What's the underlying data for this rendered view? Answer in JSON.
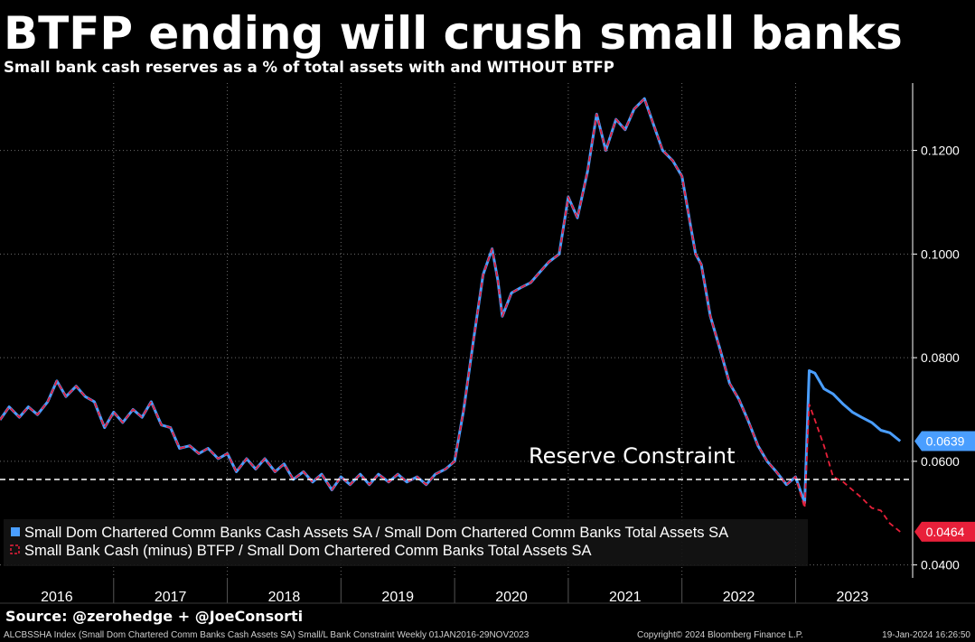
{
  "header": {
    "title": "BTFP ending will crush small banks",
    "subtitle": "Small bank cash reserves as a % of total assets with and WITHOUT BTFP"
  },
  "footer": {
    "source": "Source: @zerohedge + @JoeConsorti",
    "index_info": "ALCBSSHA Index (Small Dom Chartered Comm Banks Cash Assets SA) Small/L Bank Constraint  Weekly 01JAN2016-29NOV2023",
    "copyright": "Copyright© 2024 Bloomberg Finance L.P.",
    "timestamp": "19-Jan-2024 16:26:50"
  },
  "colors": {
    "background": "#000000",
    "series_cash": "#4a9eff",
    "series_minus_btfp": "#e8203a",
    "grid": "#6b6b6b",
    "text": "#ffffff"
  },
  "chart_data": {
    "type": "line",
    "title": "BTFP ending will crush small banks",
    "subtitle": "Small bank cash reserves as a % of total assets with and WITHOUT BTFP",
    "x_tick_labels": [
      "2016",
      "2017",
      "2018",
      "2019",
      "2020",
      "2021",
      "2022",
      "2023"
    ],
    "y_tick_labels": [
      "0.0400",
      "0.0600",
      "0.0800",
      "0.1000",
      "0.1200"
    ],
    "y_ticks": [
      0.04,
      0.06,
      0.08,
      0.1,
      0.12
    ],
    "xlim": [
      2016.0,
      2024.03
    ],
    "ylim": [
      0.0375,
      0.133
    ],
    "grid": true,
    "legend_position": "bottom-left",
    "y_axis_side": "right",
    "reference_line": {
      "label": "Reserve Constraint",
      "y": 0.0565
    },
    "series": [
      {
        "name": "Small Dom Chartered Comm Banks Cash Assets SA / Small Dom Chartered Comm Banks Total Assets SA",
        "style": "solid",
        "color": "#4a9eff",
        "last_value_label": "0.0639",
        "points": [
          [
            2016.0,
            0.068
          ],
          [
            2016.08,
            0.0705
          ],
          [
            2016.17,
            0.0685
          ],
          [
            2016.25,
            0.0705
          ],
          [
            2016.33,
            0.069
          ],
          [
            2016.42,
            0.0715
          ],
          [
            2016.5,
            0.0755
          ],
          [
            2016.58,
            0.0725
          ],
          [
            2016.67,
            0.0745
          ],
          [
            2016.75,
            0.0725
          ],
          [
            2016.83,
            0.0715
          ],
          [
            2016.92,
            0.0665
          ],
          [
            2017.0,
            0.0695
          ],
          [
            2017.08,
            0.0675
          ],
          [
            2017.17,
            0.07
          ],
          [
            2017.25,
            0.0685
          ],
          [
            2017.33,
            0.0715
          ],
          [
            2017.42,
            0.067
          ],
          [
            2017.5,
            0.0665
          ],
          [
            2017.58,
            0.0625
          ],
          [
            2017.67,
            0.063
          ],
          [
            2017.75,
            0.0615
          ],
          [
            2017.83,
            0.0625
          ],
          [
            2017.92,
            0.0605
          ],
          [
            2018.0,
            0.0615
          ],
          [
            2018.08,
            0.058
          ],
          [
            2018.17,
            0.0605
          ],
          [
            2018.25,
            0.0585
          ],
          [
            2018.33,
            0.0605
          ],
          [
            2018.42,
            0.058
          ],
          [
            2018.5,
            0.0595
          ],
          [
            2018.58,
            0.0565
          ],
          [
            2018.67,
            0.058
          ],
          [
            2018.75,
            0.056
          ],
          [
            2018.83,
            0.0575
          ],
          [
            2018.92,
            0.0545
          ],
          [
            2019.0,
            0.057
          ],
          [
            2019.08,
            0.0555
          ],
          [
            2019.17,
            0.0575
          ],
          [
            2019.25,
            0.0555
          ],
          [
            2019.33,
            0.0575
          ],
          [
            2019.42,
            0.056
          ],
          [
            2019.5,
            0.0575
          ],
          [
            2019.58,
            0.056
          ],
          [
            2019.67,
            0.057
          ],
          [
            2019.75,
            0.0555
          ],
          [
            2019.83,
            0.0575
          ],
          [
            2019.92,
            0.0585
          ],
          [
            2020.0,
            0.06
          ],
          [
            2020.08,
            0.07
          ],
          [
            2020.17,
            0.084
          ],
          [
            2020.25,
            0.096
          ],
          [
            2020.33,
            0.101
          ],
          [
            2020.38,
            0.095
          ],
          [
            2020.42,
            0.088
          ],
          [
            2020.5,
            0.0925
          ],
          [
            2020.58,
            0.0935
          ],
          [
            2020.67,
            0.0945
          ],
          [
            2020.75,
            0.0965
          ],
          [
            2020.83,
            0.0985
          ],
          [
            2020.92,
            0.1
          ],
          [
            2021.0,
            0.111
          ],
          [
            2021.08,
            0.107
          ],
          [
            2021.17,
            0.116
          ],
          [
            2021.25,
            0.127
          ],
          [
            2021.33,
            0.12
          ],
          [
            2021.42,
            0.126
          ],
          [
            2021.5,
            0.124
          ],
          [
            2021.58,
            0.128
          ],
          [
            2021.67,
            0.13
          ],
          [
            2021.75,
            0.125
          ],
          [
            2021.83,
            0.12
          ],
          [
            2021.92,
            0.118
          ],
          [
            2022.0,
            0.115
          ],
          [
            2022.08,
            0.105
          ],
          [
            2022.12,
            0.1
          ],
          [
            2022.17,
            0.098
          ],
          [
            2022.25,
            0.088
          ],
          [
            2022.33,
            0.082
          ],
          [
            2022.42,
            0.075
          ],
          [
            2022.5,
            0.072
          ],
          [
            2022.58,
            0.068
          ],
          [
            2022.67,
            0.063
          ],
          [
            2022.75,
            0.06
          ],
          [
            2022.83,
            0.058
          ],
          [
            2022.92,
            0.0555
          ],
          [
            2023.0,
            0.057
          ],
          [
            2023.08,
            0.052
          ],
          [
            2023.12,
            0.0775
          ],
          [
            2023.17,
            0.077
          ],
          [
            2023.25,
            0.074
          ],
          [
            2023.33,
            0.073
          ],
          [
            2023.42,
            0.071
          ],
          [
            2023.5,
            0.0695
          ],
          [
            2023.58,
            0.0685
          ],
          [
            2023.67,
            0.0675
          ],
          [
            2023.75,
            0.066
          ],
          [
            2023.83,
            0.0655
          ],
          [
            2023.92,
            0.0639
          ]
        ]
      },
      {
        "name": "Small Bank Cash (minus) BTFP / Small Dom Chartered Comm Banks Total Assets SA",
        "style": "dashed",
        "color": "#e8203a",
        "last_value_label": "0.0464",
        "points": [
          [
            2016.0,
            0.068
          ],
          [
            2016.08,
            0.0705
          ],
          [
            2016.17,
            0.0685
          ],
          [
            2016.25,
            0.0705
          ],
          [
            2016.33,
            0.069
          ],
          [
            2016.42,
            0.0715
          ],
          [
            2016.5,
            0.0755
          ],
          [
            2016.58,
            0.0725
          ],
          [
            2016.67,
            0.0745
          ],
          [
            2016.75,
            0.0725
          ],
          [
            2016.83,
            0.0715
          ],
          [
            2016.92,
            0.0665
          ],
          [
            2017.0,
            0.0695
          ],
          [
            2017.08,
            0.0675
          ],
          [
            2017.17,
            0.07
          ],
          [
            2017.25,
            0.0685
          ],
          [
            2017.33,
            0.0715
          ],
          [
            2017.42,
            0.067
          ],
          [
            2017.5,
            0.0665
          ],
          [
            2017.58,
            0.0625
          ],
          [
            2017.67,
            0.063
          ],
          [
            2017.75,
            0.0615
          ],
          [
            2017.83,
            0.0625
          ],
          [
            2017.92,
            0.0605
          ],
          [
            2018.0,
            0.0615
          ],
          [
            2018.08,
            0.058
          ],
          [
            2018.17,
            0.0605
          ],
          [
            2018.25,
            0.0585
          ],
          [
            2018.33,
            0.0605
          ],
          [
            2018.42,
            0.058
          ],
          [
            2018.5,
            0.0595
          ],
          [
            2018.58,
            0.0565
          ],
          [
            2018.67,
            0.058
          ],
          [
            2018.75,
            0.056
          ],
          [
            2018.83,
            0.0575
          ],
          [
            2018.92,
            0.0545
          ],
          [
            2019.0,
            0.057
          ],
          [
            2019.08,
            0.0555
          ],
          [
            2019.17,
            0.0575
          ],
          [
            2019.25,
            0.0555
          ],
          [
            2019.33,
            0.0575
          ],
          [
            2019.42,
            0.056
          ],
          [
            2019.5,
            0.0575
          ],
          [
            2019.58,
            0.056
          ],
          [
            2019.67,
            0.057
          ],
          [
            2019.75,
            0.0555
          ],
          [
            2019.83,
            0.0575
          ],
          [
            2019.92,
            0.0585
          ],
          [
            2020.0,
            0.06
          ],
          [
            2020.08,
            0.07
          ],
          [
            2020.17,
            0.084
          ],
          [
            2020.25,
            0.096
          ],
          [
            2020.33,
            0.101
          ],
          [
            2020.38,
            0.095
          ],
          [
            2020.42,
            0.088
          ],
          [
            2020.5,
            0.0925
          ],
          [
            2020.58,
            0.0935
          ],
          [
            2020.67,
            0.0945
          ],
          [
            2020.75,
            0.0965
          ],
          [
            2020.83,
            0.0985
          ],
          [
            2020.92,
            0.1
          ],
          [
            2021.0,
            0.111
          ],
          [
            2021.08,
            0.107
          ],
          [
            2021.17,
            0.116
          ],
          [
            2021.25,
            0.127
          ],
          [
            2021.33,
            0.12
          ],
          [
            2021.42,
            0.126
          ],
          [
            2021.5,
            0.124
          ],
          [
            2021.58,
            0.128
          ],
          [
            2021.67,
            0.13
          ],
          [
            2021.75,
            0.125
          ],
          [
            2021.83,
            0.12
          ],
          [
            2021.92,
            0.118
          ],
          [
            2022.0,
            0.115
          ],
          [
            2022.08,
            0.105
          ],
          [
            2022.12,
            0.1
          ],
          [
            2022.17,
            0.098
          ],
          [
            2022.25,
            0.088
          ],
          [
            2022.33,
            0.082
          ],
          [
            2022.42,
            0.075
          ],
          [
            2022.5,
            0.072
          ],
          [
            2022.58,
            0.068
          ],
          [
            2022.67,
            0.063
          ],
          [
            2022.75,
            0.06
          ],
          [
            2022.83,
            0.058
          ],
          [
            2022.92,
            0.0555
          ],
          [
            2023.0,
            0.057
          ],
          [
            2023.08,
            0.051
          ],
          [
            2023.12,
            0.071
          ],
          [
            2023.17,
            0.068
          ],
          [
            2023.25,
            0.063
          ],
          [
            2023.33,
            0.057
          ],
          [
            2023.42,
            0.056
          ],
          [
            2023.5,
            0.0545
          ],
          [
            2023.58,
            0.053
          ],
          [
            2023.67,
            0.051
          ],
          [
            2023.75,
            0.0505
          ],
          [
            2023.83,
            0.048
          ],
          [
            2023.92,
            0.0464
          ]
        ]
      }
    ]
  }
}
